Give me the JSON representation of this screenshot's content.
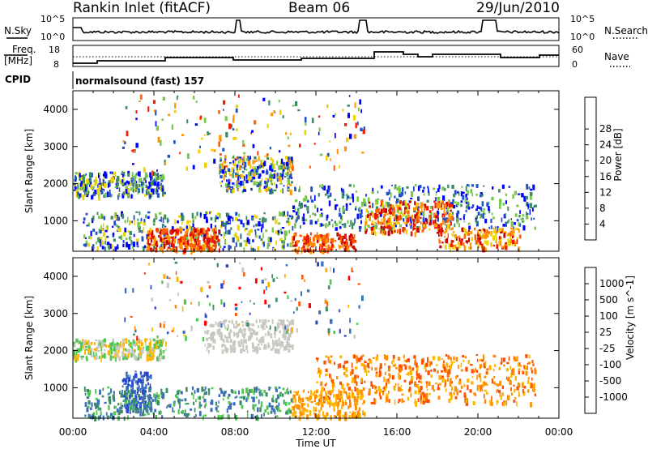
{
  "header": {
    "station": "Rankin Inlet (fitACF)",
    "beam": "Beam 06",
    "date": "29/Jun/2010"
  },
  "top_panels": {
    "nsky_label": "N.Sky",
    "nsky_ticks": [
      "10^5",
      "10^0"
    ],
    "nsearch_label": "N.Search",
    "nsearch_ticks": [
      "10^5",
      "10^0"
    ],
    "freq_label": "Freq.",
    "freq_unit": "[MHz]",
    "freq_ticks": [
      "18",
      "8"
    ],
    "nave_label": "Nave",
    "nave_ticks": [
      "60",
      "0"
    ],
    "cpid_label": "CPID",
    "cpid_text": "normalsound (fast) 157"
  },
  "chart_data": [
    {
      "type": "heatmap",
      "name": "power",
      "ylabel": "Slant Range [km]",
      "ylim": [
        180,
        4500
      ],
      "yticks": [
        1000,
        2000,
        3000,
        4000
      ],
      "xlim": [
        "00:00",
        "24:00"
      ],
      "colorbar": {
        "label": "Power [dB]",
        "ticks": [
          4,
          8,
          12,
          16,
          20,
          24,
          28
        ],
        "colors": [
          "#0000ff",
          "#2050c8",
          "#3c8c64",
          "#78c84b",
          "#f0d200",
          "#ff9600",
          "#ff6400",
          "#f01e00",
          "#c80000"
        ]
      }
    },
    {
      "type": "heatmap",
      "name": "velocity",
      "ylabel": "Slant Range [km]",
      "ylim": [
        180,
        4500
      ],
      "yticks": [
        1000,
        2000,
        3000,
        4000
      ],
      "xlim": [
        "00:00",
        "24:00"
      ],
      "xlabel": "Time UT",
      "xticks": [
        "00:00",
        "04:00",
        "08:00",
        "12:00",
        "16:00",
        "20:00",
        "00:00"
      ],
      "colorbar": {
        "label": "Velocity [m s^-1]",
        "ticks": [
          1000,
          500,
          100,
          25,
          -25,
          -100,
          -500,
          -1000
        ],
        "colors": [
          "#2846c8",
          "#3c6ebe",
          "#3c8c64",
          "#50c850",
          "#c8c8c0",
          "#ffb400",
          "#ff8c00",
          "#ff5000",
          "#ff0000"
        ]
      }
    }
  ]
}
